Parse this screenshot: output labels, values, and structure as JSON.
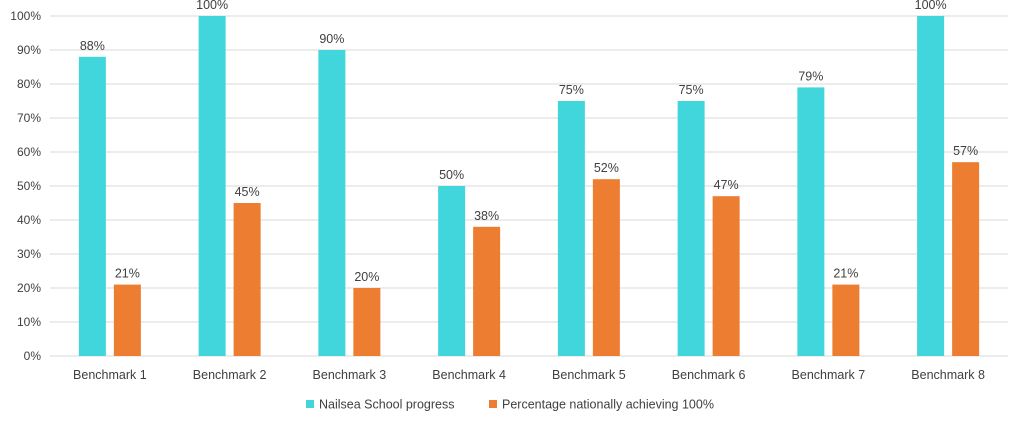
{
  "chart_data": {
    "type": "bar",
    "title": "",
    "xlabel": "",
    "ylabel": "",
    "ylim": [
      0,
      100
    ],
    "y_ticks": [
      0,
      10,
      20,
      30,
      40,
      50,
      60,
      70,
      80,
      90,
      100
    ],
    "y_tick_labels": [
      "0%",
      "10%",
      "20%",
      "30%",
      "40%",
      "50%",
      "60%",
      "70%",
      "80%",
      "90%",
      "100%"
    ],
    "grid": true,
    "legend_position": "bottom",
    "categories": [
      "Benchmark 1",
      "Benchmark 2",
      "Benchmark 3",
      "Benchmark 4",
      "Benchmark 5",
      "Benchmark 6",
      "Benchmark 7",
      "Benchmark 8"
    ],
    "series": [
      {
        "name": "Nailsea School progress",
        "color": "#41d6dc",
        "values": [
          88,
          100,
          90,
          50,
          75,
          75,
          79,
          100
        ],
        "labels": [
          "88%",
          "100%",
          "90%",
          "50%",
          "75%",
          "75%",
          "79%",
          "100%"
        ]
      },
      {
        "name": "Percentage nationally achieving 100%",
        "color": "#ed7d31",
        "values": [
          21,
          45,
          20,
          38,
          52,
          47,
          21,
          57
        ],
        "labels": [
          "21%",
          "45%",
          "20%",
          "38%",
          "52%",
          "47%",
          "21%",
          "57%"
        ]
      }
    ]
  }
}
